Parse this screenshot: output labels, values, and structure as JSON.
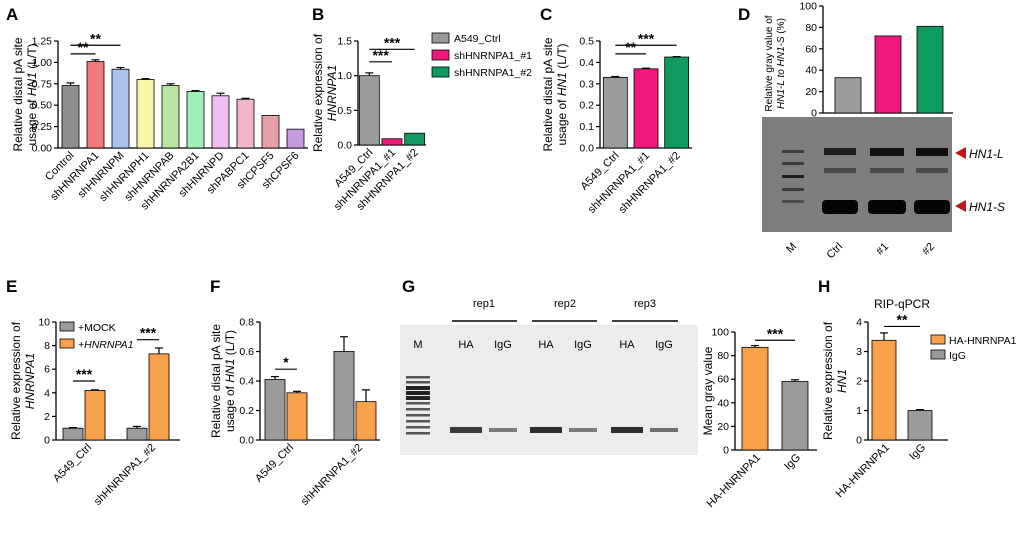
{
  "panels": {
    "A": "A",
    "B": "B",
    "C": "C",
    "D": "D",
    "E": "E",
    "F": "F",
    "G": "G",
    "H": "H"
  },
  "colors": {
    "gray": "#9b9b9b",
    "pink": "#f0187c",
    "green": "#0f9b5f",
    "orange": "#f7a14a",
    "red_marker": "#c0161c"
  },
  "chart_data": [
    {
      "id": "A",
      "type": "bar",
      "ylabel_line1": "Relative distal pA site",
      "ylabel_line2_pre": "usage of ",
      "ylabel_line2_it": "HN1",
      "ylabel_line2_post": " (L/T)",
      "ylim": [
        0,
        1.25
      ],
      "yticks": [
        "0.00",
        "0.25",
        "0.50",
        "0.75",
        "1.00",
        "1.25"
      ],
      "categories": [
        "Control",
        "shHNRNPA1",
        "shHNRNPM",
        "shHNRNPH1",
        "shHNRNPAB",
        "shHNRNPA2B1",
        "shHNRNPD",
        "shPABPC1",
        "shCPSF5",
        "shCPSF6"
      ],
      "values": [
        0.73,
        1.01,
        0.92,
        0.8,
        0.73,
        0.66,
        0.61,
        0.57,
        0.38,
        0.22
      ],
      "errors": [
        0.03,
        0.02,
        0.02,
        0.01,
        0.02,
        0.01,
        0.03,
        0.01,
        0.0,
        0.0
      ],
      "colors": [
        "#8f8f8f",
        "#f27979",
        "#aac4ef",
        "#f6f6a6",
        "#b8e6a0",
        "#9ff0b8",
        "#f0bdf0",
        "#f2b6c8",
        "#e8a0a8",
        "#c59adf"
      ],
      "significance": [
        {
          "label": "**"
        },
        {
          "label": "**"
        }
      ]
    },
    {
      "id": "B",
      "type": "bar",
      "ylabel_line1": "Relative expression of",
      "ylabel_line2_it": "HNRNPA1",
      "ylim": [
        0,
        1.5
      ],
      "yticks": [
        "0.0",
        "0.5",
        "1.0",
        "1.5"
      ],
      "categories": [
        "A549_Ctrl",
        "shHNRNPA1_#1",
        "shHNRNPA1_#2"
      ],
      "values": [
        1.0,
        0.09,
        0.17
      ],
      "errors": [
        0.04,
        0.0,
        0.0
      ],
      "legend": [
        "A549_Ctrl",
        "shHNRNPA1_#1",
        "shHNRNPA1_#2"
      ],
      "significance": [
        {
          "label": "***"
        },
        {
          "label": "***"
        }
      ]
    },
    {
      "id": "C",
      "type": "bar",
      "ylabel_line1": "Relative distal pA site",
      "ylabel_line2_pre": "usage of ",
      "ylabel_line2_it": "HN1",
      "ylabel_line2_post": " (L/T)",
      "ylim": [
        0,
        0.5
      ],
      "yticks": [
        "0.0",
        "0.1",
        "0.2",
        "0.3",
        "0.4",
        "0.5"
      ],
      "categories": [
        "A549_Ctrl",
        "shHNRNPA1_#1",
        "shHNRNPA1_#2"
      ],
      "values": [
        0.33,
        0.37,
        0.425
      ],
      "errors": [
        0.004,
        0.003,
        0.002
      ],
      "significance": [
        {
          "label": "**"
        },
        {
          "label": "***"
        }
      ]
    },
    {
      "id": "D",
      "type": "bar",
      "ylabel_line1": "Relative gray value of",
      "ylabel_line2_it": "HN1-L to HN1-S",
      "ylabel_line2_post": " (%)",
      "ylim": [
        0,
        100
      ],
      "yticks": [
        "0",
        "20",
        "40",
        "60",
        "80",
        "100"
      ],
      "categories": [
        "Ctrl",
        "#1",
        "#2"
      ],
      "values": [
        33,
        72,
        81
      ],
      "gel_lanes": [
        "M",
        "Ctrl",
        "#1",
        "#2"
      ],
      "bands": [
        "HN1-L",
        "HN1-S"
      ]
    },
    {
      "id": "E",
      "type": "bar",
      "ylabel_line1": "Relative expression of",
      "ylabel_line2_it": "HNRNPA1",
      "ylim": [
        0,
        10
      ],
      "yticks": [
        "0",
        "2",
        "4",
        "6",
        "8",
        "10"
      ],
      "categories": [
        "A549_Ctrl",
        "shHNRNPA1_#2"
      ],
      "series": [
        {
          "name": "+MOCK",
          "values": [
            1.0,
            1.0
          ],
          "errors": [
            0.05,
            0.15
          ]
        },
        {
          "name": "+HNRNPA1",
          "values": [
            4.2,
            7.3
          ],
          "errors": [
            0.05,
            0.5
          ]
        }
      ],
      "legend_mock": "+MOCK",
      "legend_hn": "+HNRNPA1",
      "significance": [
        {
          "label": "***"
        },
        {
          "label": "***"
        }
      ]
    },
    {
      "id": "F",
      "type": "bar",
      "ylabel_line1": "Relative distal pA site",
      "ylabel_line2_pre": "usage of ",
      "ylabel_line2_it": "HN1",
      "ylabel_line2_post": " (L/T)",
      "ylim": [
        0,
        0.8
      ],
      "yticks": [
        "0.0",
        "0.2",
        "0.4",
        "0.6",
        "0.8"
      ],
      "categories": [
        "A549_Ctrl",
        "shHNRNPA1_#2"
      ],
      "series": [
        {
          "name": "+MOCK",
          "values": [
            0.41,
            0.6
          ],
          "errors": [
            0.02,
            0.1
          ]
        },
        {
          "name": "+HNRNPA1",
          "values": [
            0.32,
            0.26
          ],
          "errors": [
            0.01,
            0.08
          ]
        }
      ],
      "significance": [
        {
          "label": "*"
        }
      ]
    },
    {
      "id": "G",
      "type": "bar",
      "ylabel": "Mean gray value",
      "ylim": [
        0,
        100
      ],
      "yticks": [
        "0",
        "20",
        "40",
        "60",
        "80",
        "100"
      ],
      "categories": [
        "HA-HNRNPA1",
        "IgG"
      ],
      "values": [
        87,
        58
      ],
      "errors": [
        1.5,
        1.5
      ],
      "reps": [
        "rep1",
        "rep2",
        "rep3"
      ],
      "gel_lanes": [
        "M",
        "HA",
        "IgG",
        "HA",
        "IgG",
        "HA",
        "IgG"
      ],
      "significance": [
        {
          "label": "***"
        }
      ]
    },
    {
      "id": "H",
      "type": "bar",
      "title": "RIP-qPCR",
      "ylabel_line1": "Relative expression of",
      "ylabel_line2_it": "HN1",
      "ylim": [
        0,
        4
      ],
      "yticks": [
        "0",
        "1",
        "2",
        "3",
        "4"
      ],
      "categories": [
        "HA-HNRNPA1",
        "IgG"
      ],
      "values": [
        3.38,
        1.0
      ],
      "errors": [
        0.25,
        0.03
      ],
      "legend": [
        "HA-HNRNPA1",
        "IgG"
      ],
      "significance": [
        {
          "label": "**"
        }
      ]
    }
  ]
}
